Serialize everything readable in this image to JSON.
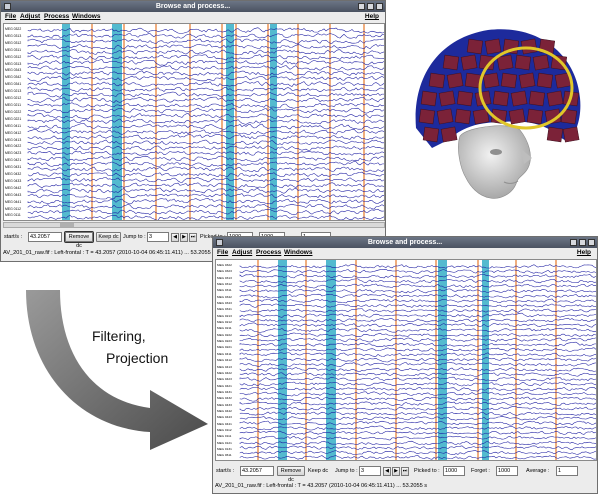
{
  "window_title": "Browse and process...",
  "menu": {
    "file": "File",
    "adjust": "Adjust",
    "process": "Process",
    "windows": "Windows",
    "help": "Help"
  },
  "channels_top": [
    "MEG 0322",
    "MEG 0313",
    "MEG 0312",
    "MEG 0311",
    "MEG 0312",
    "MEG 0313",
    "MEG 0343",
    "MEG 0342",
    "MEG 0341",
    "MEG 0213",
    "MEG 0212",
    "MEG 0211",
    "MEG 0222",
    "MEG 0221",
    "MEG 0411",
    "MEG 0412",
    "MEG 0413",
    "MEG 0422",
    "MEG 0423",
    "MEG 0421",
    "MEG 0431",
    "MEG 0432",
    "MEG 0433",
    "MEG 0442",
    "MEG 0443",
    "MEG 0441",
    "MEG 0112",
    "MEG 0111",
    "MEG 0121",
    "MEG 0131",
    "MEG 0611",
    "MEG 0612",
    "MEG 0613",
    "MEG 0621",
    "MEG 0622",
    "MEG 0623"
  ],
  "channels_bottom": [
    "MEG 0322",
    "MEG 0323",
    "MEG 0313",
    "MEG 0312",
    "MEG 0311",
    "MEG 0342",
    "MEG 0343",
    "MEG 0341",
    "MEG 0213",
    "MEG 0212",
    "MEG 0211",
    "MEG 0222",
    "MEG 0223",
    "MEG 0221",
    "MEG 0411",
    "MEG 0412",
    "MEG 0413",
    "MEG 0422",
    "MEG 0423",
    "MEG 0421",
    "MEG 0431",
    "MEG 0432",
    "MEG 0433",
    "MEG 0442",
    "MEG 0443",
    "MEG 0441",
    "MEG 0112",
    "MEG 0111",
    "MEG 0121",
    "MEG 0131",
    "MEG 0611",
    "MEG 0612",
    "MEG 0613",
    "MEG 0621",
    "MEG 0622",
    "MEG 0623",
    "MEG 0633",
    "MEG 0632",
    "MEG 0631",
    "EEG 014"
  ],
  "controls": {
    "start_label": "start/s :",
    "start_value": "43.2057",
    "remove_dc": "Remove dc",
    "keep_dc": "Keep dc",
    "jump_label": "Jump to :",
    "jump_value": "3",
    "picked_label": "Picked to :",
    "picked_value": "1000",
    "forget_label": "Forget :",
    "forget_value": "1000",
    "average_label": "Average :",
    "average_value": "1"
  },
  "status_text": "AV_201_01_raw.fif : Left-frontal : T = 43.2057 (2010-10-04 06:45:11.411) ... 53.2055 s",
  "caption": {
    "line1": "Filtering,",
    "line2": "Projection"
  },
  "colors": {
    "trace": "#1a1aa0",
    "event_marker": "#e8833a",
    "selection_band": "#35aec7",
    "sensor_tile": "#7b2238",
    "helmet": "#1d2a9c",
    "region_ring": "#e0c72a"
  }
}
